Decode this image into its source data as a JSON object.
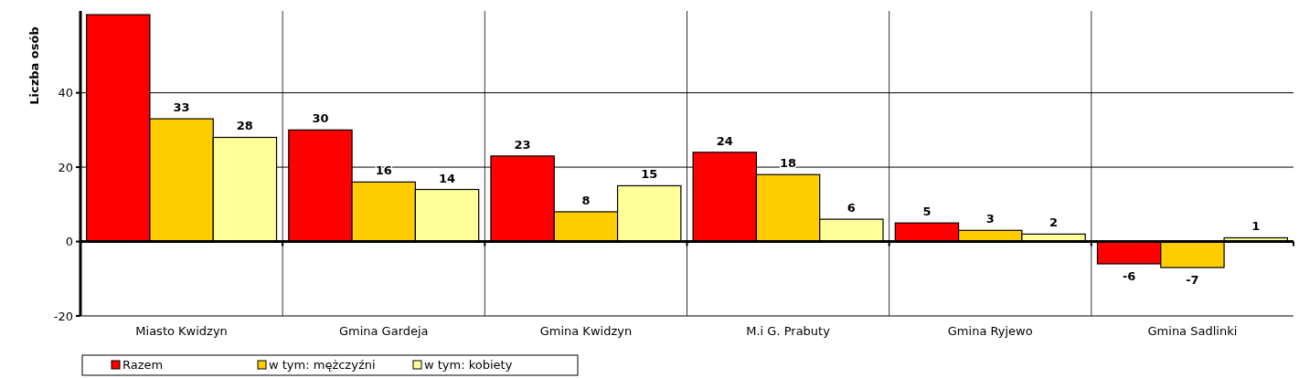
{
  "chart_data": {
    "type": "bar",
    "ylabel": "Liczba osób",
    "categories": [
      "Miasto Kwidzyn",
      "Gmina Gardeja",
      "Gmina Kwidzyn",
      "M.i G. Prabuty",
      "Gmina Ryjewo",
      "Gmina Sadlinki"
    ],
    "series": [
      {
        "name": "Razem",
        "color": "#ff0000",
        "values": [
          61,
          30,
          23,
          24,
          5,
          -6
        ],
        "value_labels": [
          null,
          "30",
          "23",
          "24",
          "5",
          "-6"
        ]
      },
      {
        "name": "w tym: mężczyźni",
        "color": "#ffcc00",
        "values": [
          33,
          16,
          8,
          18,
          3,
          -7
        ],
        "value_labels": [
          "33",
          "16",
          "8",
          "18",
          "3",
          "-7"
        ]
      },
      {
        "name": "w tym: kobiety",
        "color": "#ffff99",
        "values": [
          28,
          14,
          15,
          6,
          2,
          1
        ],
        "value_labels": [
          "28",
          "14",
          "15",
          "6",
          "2",
          "1"
        ]
      }
    ],
    "ylim": [
      -20,
      62
    ],
    "yticks": [
      -20,
      0,
      20,
      40
    ],
    "grid": true,
    "legend": "bottom left"
  }
}
